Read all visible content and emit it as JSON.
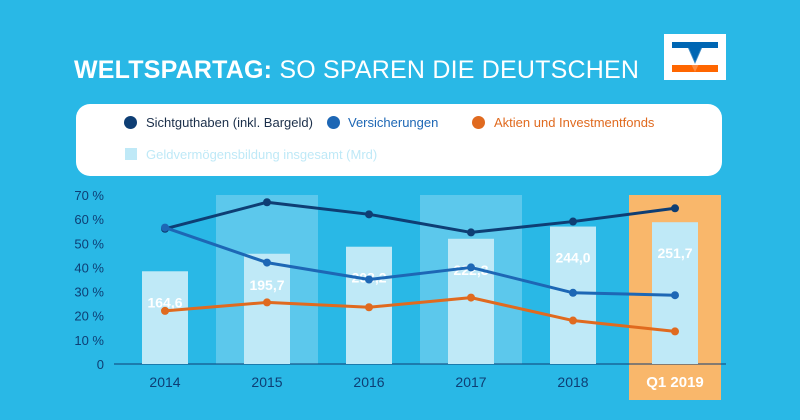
{
  "header": {
    "title_bold": "WELTSPARTAG:",
    "title_rest": "SO SPAREN DIE DEUTSCHEN",
    "logo_icon": "volksbank-logo-icon"
  },
  "legend": {
    "items": [
      {
        "label": "Sichtguthaben (inkl. Bargeld)",
        "color": "#0e3e74"
      },
      {
        "label": "Versicherungen",
        "color": "#1d67b5"
      },
      {
        "label": "Aktien und Investmentfonds",
        "color": "#e06a1f"
      },
      {
        "label": "Geldvermögensbildung insgesamt (Mrd)",
        "color": "#bfe9f7"
      }
    ]
  },
  "chart_data": {
    "type": "bar",
    "categories": [
      "2014",
      "2015",
      "2016",
      "2017",
      "2018",
      "Q1 2019"
    ],
    "yticks": [
      "0",
      "10 %",
      "20 %",
      "30 %",
      "40 %",
      "50 %",
      "60 %",
      "70 %"
    ],
    "ylim": [
      0,
      70
    ],
    "bar_series": {
      "name": "Geldvermögensbildung insgesamt (Mrd)",
      "labels": [
        "164,6",
        "195,7",
        "208,2",
        "222,3",
        "244,0",
        "251,7"
      ],
      "values": [
        164.6,
        195.7,
        208.2,
        222.3,
        244.0,
        251.7
      ],
      "bar_scale_max_mrd": 300
    },
    "series": [
      {
        "name": "Sichtguthaben (inkl. Bargeld)",
        "color": "#0e3e74",
        "values": [
          56,
          67,
          62,
          54.5,
          59,
          64.5
        ]
      },
      {
        "name": "Versicherungen",
        "color": "#1d67b5",
        "values": [
          56.5,
          42,
          35,
          40,
          29.5,
          28.5
        ]
      },
      {
        "name": "Aktien und Investmentfonds",
        "color": "#e06a1f",
        "values": [
          22,
          25.5,
          23.5,
          27.5,
          18,
          13.5
        ]
      }
    ],
    "highlight_category": "Q1 2019",
    "highlight_color": "#f9b76b",
    "grid": false
  }
}
